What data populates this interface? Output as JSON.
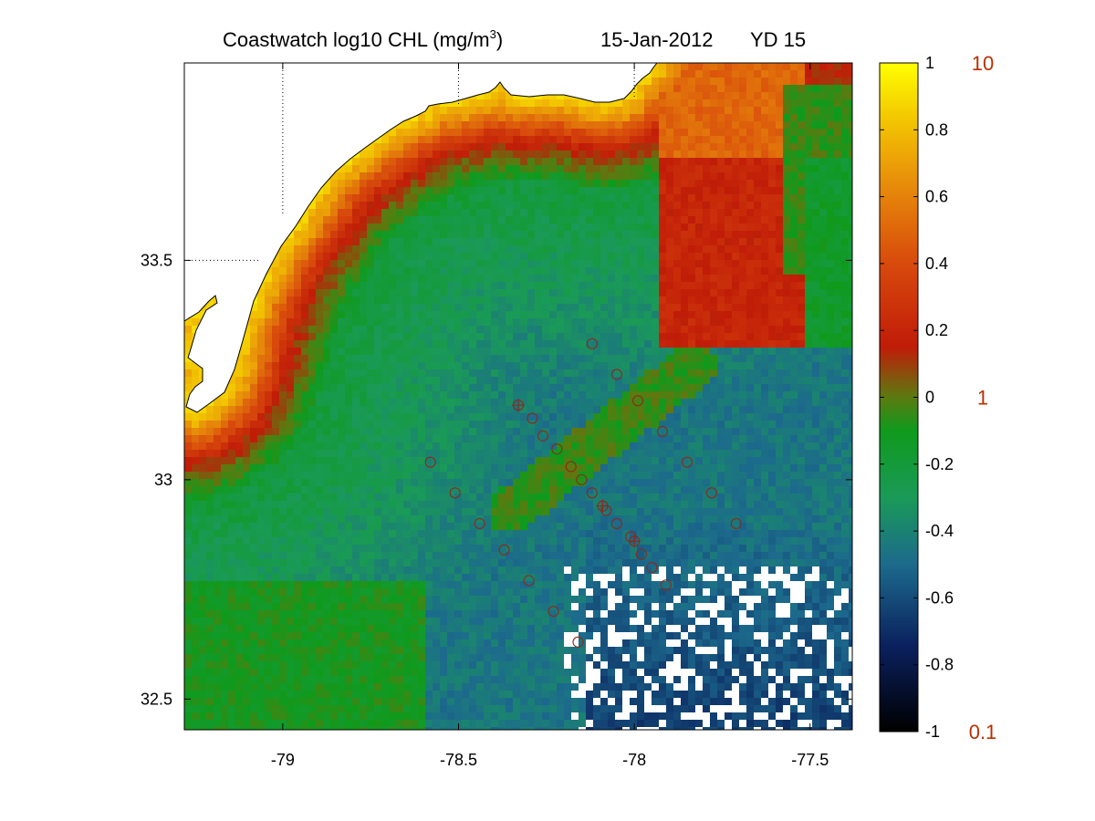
{
  "title": {
    "main": "Coastwatch  log10  CHL (mg/m",
    "superscript": "3",
    "close": ")",
    "date": "15-Jan-2012",
    "yearday": "YD 15"
  },
  "map": {
    "lon_range": [
      -79.28,
      -77.38
    ],
    "lat_range": [
      32.43,
      33.95
    ],
    "x_ticks": [
      {
        "value": -79,
        "label": "-79"
      },
      {
        "value": -78.5,
        "label": "-78.5"
      },
      {
        "value": -78,
        "label": "-78"
      },
      {
        "value": -77.5,
        "label": "-77.5"
      }
    ],
    "y_ticks": [
      {
        "value": 33.5,
        "label": "33.5"
      },
      {
        "value": 33,
        "label": "33"
      },
      {
        "value": 32.5,
        "label": "32.5"
      }
    ],
    "grid": "dotted, land only",
    "coastline_color": "#000000",
    "missing_data_color": "#ffffff",
    "stations": [
      {
        "lon": -78.12,
        "lat": 33.31,
        "cross": false
      },
      {
        "lon": -78.05,
        "lat": 33.24,
        "cross": false
      },
      {
        "lon": -78.33,
        "lat": 33.17,
        "cross": true
      },
      {
        "lon": -77.99,
        "lat": 33.18,
        "cross": false
      },
      {
        "lon": -78.29,
        "lat": 33.14,
        "cross": false
      },
      {
        "lon": -77.92,
        "lat": 33.11,
        "cross": false
      },
      {
        "lon": -78.26,
        "lat": 33.1,
        "cross": false
      },
      {
        "lon": -78.22,
        "lat": 33.07,
        "cross": false
      },
      {
        "lon": -78.18,
        "lat": 33.03,
        "cross": false
      },
      {
        "lon": -78.58,
        "lat": 33.04,
        "cross": false
      },
      {
        "lon": -77.85,
        "lat": 33.04,
        "cross": false
      },
      {
        "lon": -78.15,
        "lat": 33.0,
        "cross": false
      },
      {
        "lon": -78.51,
        "lat": 32.97,
        "cross": false
      },
      {
        "lon": -78.12,
        "lat": 32.97,
        "cross": false
      },
      {
        "lon": -78.09,
        "lat": 32.94,
        "cross": true
      },
      {
        "lon": -78.08,
        "lat": 32.93,
        "cross": false
      },
      {
        "lon": -77.78,
        "lat": 32.97,
        "cross": false
      },
      {
        "lon": -78.44,
        "lat": 32.9,
        "cross": false
      },
      {
        "lon": -78.05,
        "lat": 32.9,
        "cross": false
      },
      {
        "lon": -77.71,
        "lat": 32.9,
        "cross": false
      },
      {
        "lon": -78.01,
        "lat": 32.87,
        "cross": false
      },
      {
        "lon": -78.0,
        "lat": 32.86,
        "cross": true
      },
      {
        "lon": -78.37,
        "lat": 32.84,
        "cross": false
      },
      {
        "lon": -77.98,
        "lat": 32.83,
        "cross": false
      },
      {
        "lon": -77.95,
        "lat": 32.8,
        "cross": false
      },
      {
        "lon": -78.3,
        "lat": 32.77,
        "cross": false
      },
      {
        "lon": -77.91,
        "lat": 32.76,
        "cross": false
      },
      {
        "lon": -78.23,
        "lat": 32.7,
        "cross": false
      },
      {
        "lon": -78.16,
        "lat": 32.63,
        "cross": false
      }
    ],
    "station_color": "#8b2a1a"
  },
  "colorbar": {
    "range": [
      -1,
      1
    ],
    "ticks": [
      "1",
      "0.8",
      "0.6",
      "0.4",
      "0.2",
      "0",
      "-0.2",
      "-0.4",
      "-0.6",
      "-0.8",
      "-1"
    ],
    "stops": [
      {
        "v": -1.0,
        "color": "#000000"
      },
      {
        "v": -0.75,
        "color": "#0a1f5c"
      },
      {
        "v": -0.5,
        "color": "#1c6a8c"
      },
      {
        "v": -0.3,
        "color": "#1a9a58"
      },
      {
        "v": -0.1,
        "color": "#0f9a1c"
      },
      {
        "v": 0.0,
        "color": "#5c7a10"
      },
      {
        "v": 0.15,
        "color": "#c01c08"
      },
      {
        "v": 0.4,
        "color": "#d84a0c"
      },
      {
        "v": 0.65,
        "color": "#e8900a"
      },
      {
        "v": 0.85,
        "color": "#f4cc00"
      },
      {
        "v": 1.0,
        "color": "#ffff00"
      }
    ],
    "right_labels": [
      {
        "value": 1,
        "label": "10"
      },
      {
        "value": 0,
        "label": "1"
      },
      {
        "value": -1,
        "label": "0.1"
      }
    ],
    "right_label_color": "#b83000"
  }
}
